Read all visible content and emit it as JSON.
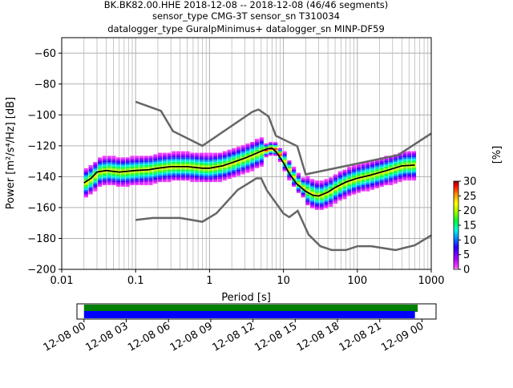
{
  "chart_data": {
    "type": "ppsd",
    "title_lines": [
      "BK.BK82.00.HHE   2018-12-08 -- 2018-12-08  (46/46 segments)",
      "sensor_type CMG-3T sensor_sn T310034",
      "datalogger_type GuralpMinimus+ datalogger_sn MINP-DF59"
    ],
    "xlabel": "Period [s]",
    "ylabel": "Power [m²/s⁴/Hz] [dB]",
    "x_scale": "log",
    "xlim": [
      0.01,
      1000
    ],
    "ylim": [
      -200,
      -50
    ],
    "grid": true,
    "x_ticks": [
      {
        "value": 0.01,
        "label": "0.01"
      },
      {
        "value": 0.1,
        "label": "0.1"
      },
      {
        "value": 1,
        "label": "1"
      },
      {
        "value": 10,
        "label": "10"
      },
      {
        "value": 100,
        "label": "100"
      },
      {
        "value": 1000,
        "label": "1000"
      }
    ],
    "y_ticks": [
      {
        "value": -60,
        "label": "−60"
      },
      {
        "value": -80,
        "label": "−80"
      },
      {
        "value": -100,
        "label": "−100"
      },
      {
        "value": -120,
        "label": "−120"
      },
      {
        "value": -140,
        "label": "−140"
      },
      {
        "value": -160,
        "label": "−160"
      },
      {
        "value": -180,
        "label": "−180"
      },
      {
        "value": -200,
        "label": "−200"
      }
    ],
    "noise_models": [
      {
        "model": "high",
        "color": "#666666",
        "points": [
          [
            0.1,
            -91.5
          ],
          [
            0.22,
            -97.4
          ],
          [
            0.32,
            -110.5
          ],
          [
            0.8,
            -120
          ],
          [
            3.8,
            -98
          ],
          [
            4.6,
            -96.5
          ],
          [
            6.3,
            -101
          ],
          [
            7.9,
            -113.5
          ],
          [
            15.4,
            -120.3
          ],
          [
            20,
            -138.5
          ],
          [
            354.8,
            -126
          ],
          [
            1000,
            -112
          ]
        ]
      },
      {
        "model": "low",
        "color": "#666666",
        "points": [
          [
            0.1,
            -168
          ],
          [
            0.17,
            -166.7
          ],
          [
            0.4,
            -166.7
          ],
          [
            0.8,
            -169.2
          ],
          [
            1.24,
            -163.7
          ],
          [
            2.4,
            -148.6
          ],
          [
            4.3,
            -141.1
          ],
          [
            5,
            -141.1
          ],
          [
            6,
            -149
          ],
          [
            10,
            -163.8
          ],
          [
            12,
            -166.2
          ],
          [
            15.6,
            -162.1
          ],
          [
            21.9,
            -177.5
          ],
          [
            31.6,
            -185
          ],
          [
            45,
            -187.5
          ],
          [
            70,
            -187.5
          ],
          [
            101,
            -185
          ],
          [
            154,
            -185
          ],
          [
            328,
            -187.5
          ],
          [
            600,
            -184.4
          ],
          [
            1000,
            -178
          ]
        ]
      }
    ],
    "mean_curve": {
      "color": "#000000",
      "points": [
        [
          0.02,
          -144
        ],
        [
          0.025,
          -141
        ],
        [
          0.03,
          -137
        ],
        [
          0.04,
          -136
        ],
        [
          0.06,
          -137
        ],
        [
          0.1,
          -136
        ],
        [
          0.15,
          -135.5
        ],
        [
          0.2,
          -134.5
        ],
        [
          0.3,
          -133.5
        ],
        [
          0.5,
          -133.5
        ],
        [
          0.8,
          -134.5
        ],
        [
          1,
          -134.5
        ],
        [
          1.5,
          -133
        ],
        [
          2,
          -131
        ],
        [
          3,
          -128
        ],
        [
          4,
          -125.5
        ],
        [
          5,
          -123.5
        ],
        [
          6,
          -122
        ],
        [
          7,
          -121.5
        ],
        [
          8,
          -124
        ],
        [
          10,
          -131
        ],
        [
          12,
          -138
        ],
        [
          15,
          -144.5
        ],
        [
          20,
          -149.5
        ],
        [
          25,
          -152
        ],
        [
          30,
          -152.5
        ],
        [
          40,
          -150
        ],
        [
          50,
          -147
        ],
        [
          70,
          -143.5
        ],
        [
          100,
          -141
        ],
        [
          150,
          -139
        ],
        [
          250,
          -136
        ],
        [
          400,
          -133
        ],
        [
          600,
          -132.5
        ]
      ]
    },
    "ppsd_distribution": {
      "period_range": [
        0.02,
        600
      ],
      "half_width_db": 9,
      "probability_range_percent": [
        0,
        30
      ]
    },
    "colorbar": {
      "label": "[%]",
      "ticks": [
        0,
        5,
        10,
        15,
        20,
        25,
        30
      ],
      "range": [
        0,
        30
      ]
    },
    "data_coverage": {
      "time_ticks": [
        "12-08 00",
        "12-08 03",
        "12-08 06",
        "12-08 09",
        "12-08 12",
        "12-08 15",
        "12-08 18",
        "12-08 21",
        "12-09 00"
      ],
      "time_range_hours": [
        -0.5,
        25
      ],
      "bars": [
        {
          "color": "#008000",
          "start_hours": 0,
          "end_hours": 23.7
        },
        {
          "color": "#0000ff",
          "start_hours": 0,
          "end_hours": 23.5
        }
      ]
    }
  }
}
